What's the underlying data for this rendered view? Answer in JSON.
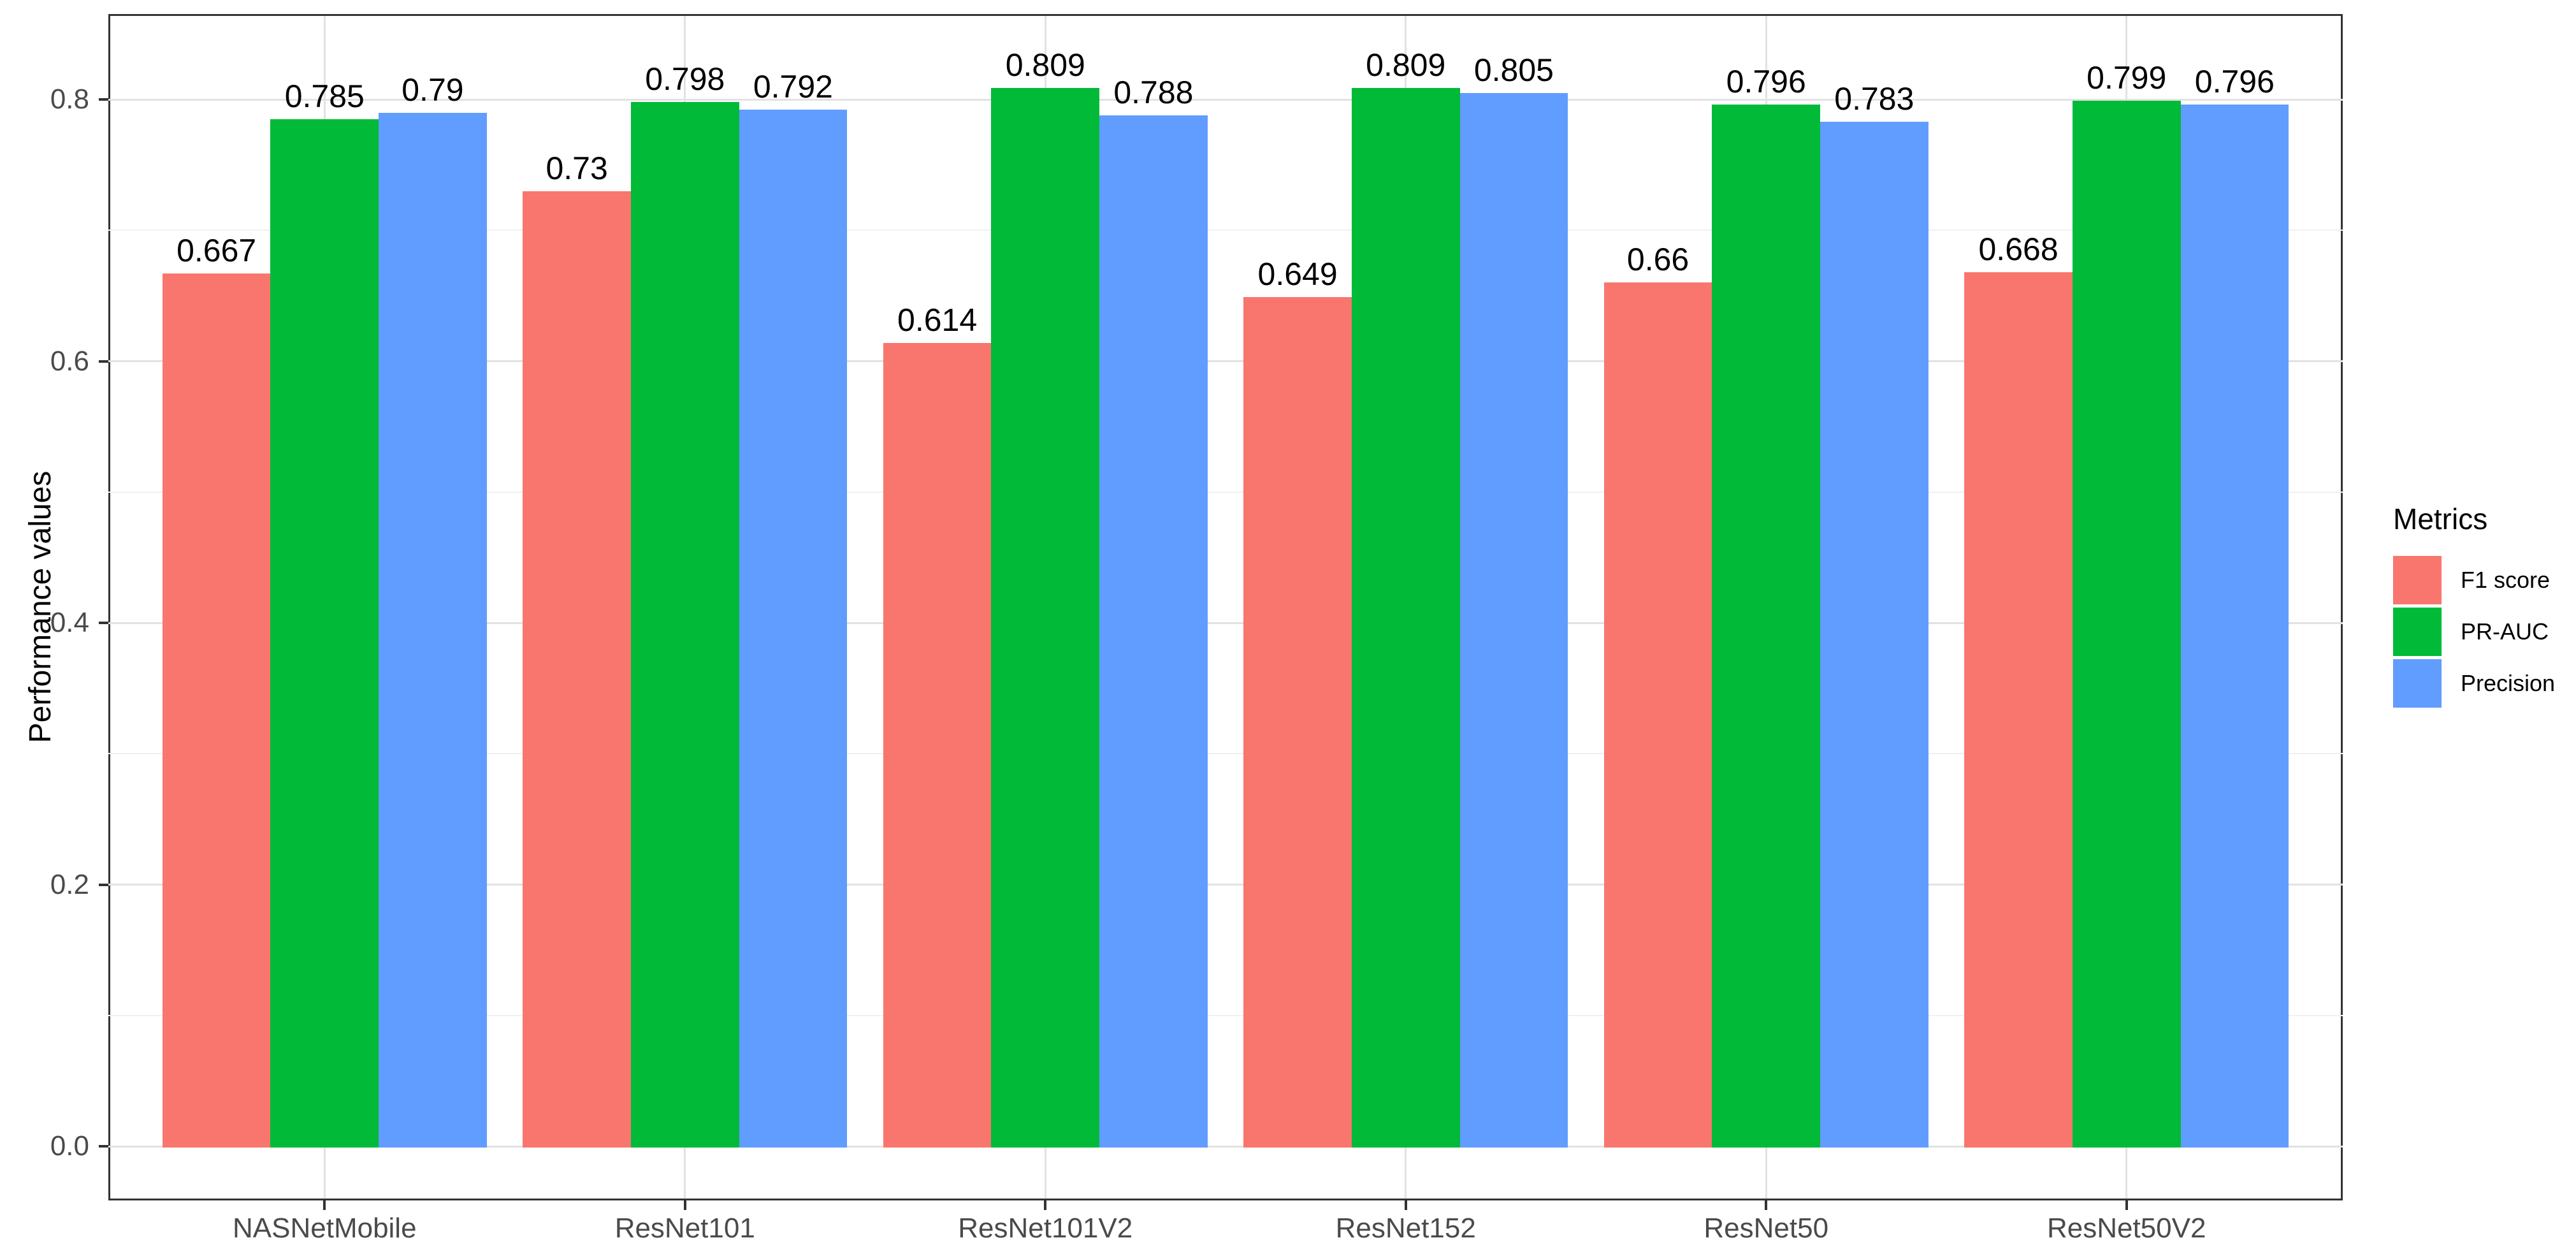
{
  "chart_data": {
    "type": "bar",
    "title": "",
    "categories": [
      "NASNetMobile",
      "ResNet101",
      "ResNet101V2",
      "ResNet152",
      "ResNet50",
      "ResNet50V2"
    ],
    "series": [
      {
        "name": "F1 score",
        "color": "#F8766D",
        "values": [
          0.667,
          0.73,
          0.614,
          0.649,
          0.66,
          0.668
        ],
        "labels": [
          "0.667",
          "0.73",
          "0.614",
          "0.649",
          "0.66",
          "0.668"
        ]
      },
      {
        "name": "PR-AUC",
        "color": "#00BA38",
        "values": [
          0.785,
          0.798,
          0.809,
          0.809,
          0.796,
          0.799
        ],
        "labels": [
          "0.785",
          "0.798",
          "0.809",
          "0.809",
          "0.796",
          "0.799"
        ]
      },
      {
        "name": "Precision",
        "color": "#619CFF",
        "values": [
          0.79,
          0.792,
          0.788,
          0.805,
          0.783,
          0.796
        ],
        "labels": [
          "0.79",
          "0.792",
          "0.788",
          "0.805",
          "0.783",
          "0.796"
        ]
      }
    ],
    "xlabel": "",
    "ylabel": "Performance values",
    "yticks": [
      "0.0",
      "0.2",
      "0.4",
      "0.6",
      "0.8"
    ],
    "ytick_values": [
      0.0,
      0.2,
      0.4,
      0.6,
      0.8
    ],
    "minor_ticks": [
      0.1,
      0.3,
      0.5,
      0.7
    ],
    "ylim": [
      -0.0414,
      0.8653
    ],
    "grid": true,
    "legend_title": "Metrics",
    "legend_position": "right",
    "colors": {
      "grid_major": "#e2e2e2",
      "grid_minor": "#f0f0f0",
      "panel_border": "#333333",
      "axis_text": "#4a4a4a",
      "label_text": "#000000"
    }
  }
}
